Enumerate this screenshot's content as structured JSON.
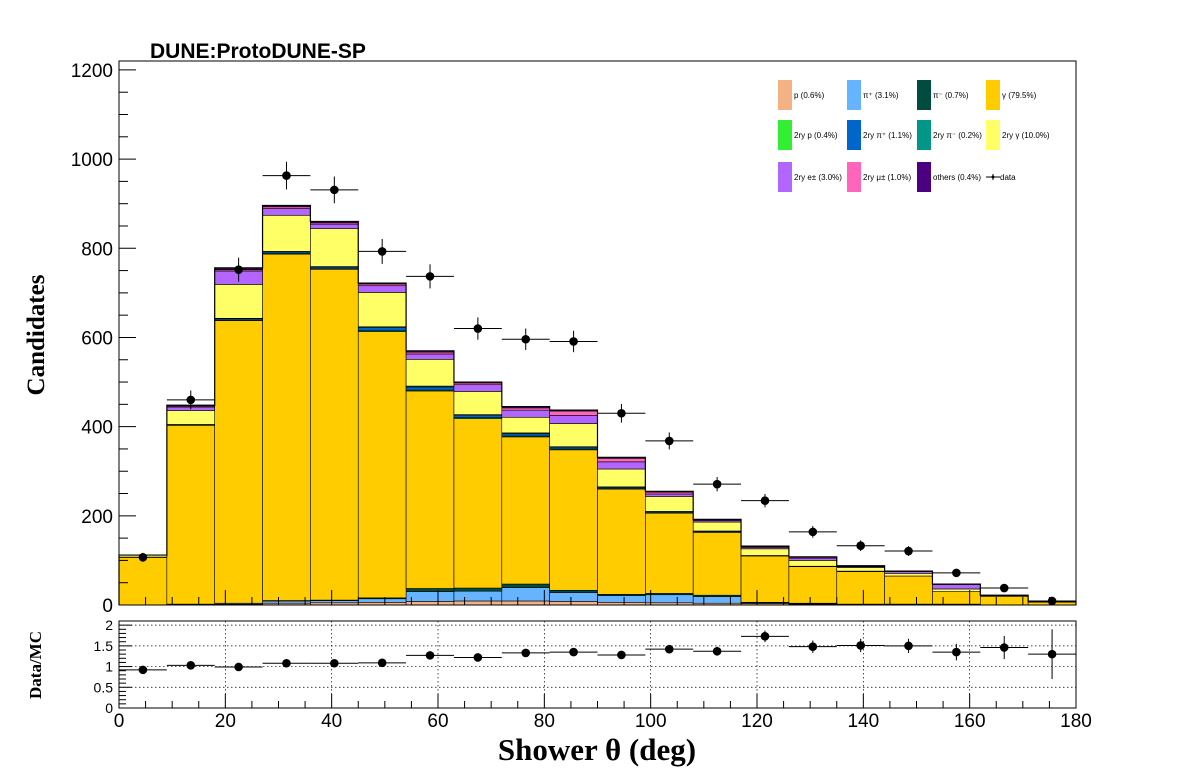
{
  "chart_data": [
    {
      "type": "bar",
      "title": "DUNE:ProtoDUNE-SP",
      "xlabel": "",
      "ylabel": "Candidates",
      "xlim": [
        0,
        180
      ],
      "ylim": [
        0,
        1220
      ],
      "y_ticks": [
        "0",
        "200",
        "400",
        "600",
        "800",
        "1000",
        "1200"
      ],
      "bin_edges": [
        0,
        9,
        18,
        27,
        36,
        45,
        54,
        63,
        72,
        81,
        90,
        99,
        108,
        117,
        126,
        135,
        144,
        153,
        162,
        171,
        180
      ],
      "series": [
        {
          "name": "p (0.6%)",
          "color": "#f4b183",
          "values": [
            0,
            1,
            2,
            4,
            5,
            6,
            8,
            9,
            9,
            8,
            6,
            5,
            4,
            3,
            2,
            1,
            1,
            1,
            0,
            0
          ]
        },
        {
          "name": "π⁺ (3.1%)",
          "color": "#66b3ff",
          "values": [
            0,
            1,
            2,
            5,
            5,
            8,
            22,
            22,
            30,
            20,
            15,
            18,
            15,
            2,
            1,
            1,
            1,
            1,
            0,
            0
          ]
        },
        {
          "name": "π⁻ (0.7%)",
          "color": "#004d40",
          "values": [
            0,
            0,
            0,
            1,
            1,
            2,
            7,
            7,
            8,
            5,
            3,
            3,
            3,
            1,
            1,
            0,
            0,
            0,
            0,
            0
          ]
        },
        {
          "name": "γ (79.5%)",
          "color": "#ffcc00",
          "values": [
            107,
            401,
            634,
            777,
            742,
            597,
            443,
            380,
            330,
            315,
            236,
            180,
            141,
            104,
            82,
            73,
            63,
            28,
            19,
            7
          ]
        },
        {
          "name": "2ry p (0.4%)",
          "color": "#33ee33",
          "values": [
            0,
            0,
            1,
            1,
            1,
            2,
            2,
            2,
            2,
            2,
            1,
            1,
            1,
            0,
            0,
            0,
            0,
            0,
            0,
            0
          ]
        },
        {
          "name": "2ry π⁺ (1.1%)",
          "color": "#0066cc",
          "values": [
            0,
            2,
            3,
            4,
            4,
            7,
            7,
            6,
            5,
            4,
            3,
            3,
            2,
            1,
            1,
            1,
            0,
            0,
            0,
            0
          ]
        },
        {
          "name": "2ry π⁻ (0.2%)",
          "color": "#009688",
          "values": [
            0,
            0,
            1,
            1,
            1,
            2,
            2,
            1,
            2,
            1,
            1,
            0,
            0,
            0,
            0,
            0,
            0,
            0,
            0,
            0
          ]
        },
        {
          "name": "2ry γ (10.0%)",
          "color": "#ffff66",
          "values": [
            5,
            31,
            76,
            81,
            85,
            77,
            60,
            52,
            35,
            52,
            40,
            33,
            20,
            15,
            13,
            8,
            6,
            6,
            2,
            0
          ]
        },
        {
          "name": "2ry e± (3.0%)",
          "color": "#b266ff",
          "values": [
            0,
            8,
            30,
            15,
            10,
            15,
            12,
            15,
            16,
            18,
            16,
            6,
            3,
            3,
            5,
            2,
            4,
            10,
            1,
            0
          ]
        },
        {
          "name": "2ry μ± (1.0%)",
          "color": "#ff66bb",
          "values": [
            0,
            2,
            3,
            4,
            3,
            4,
            4,
            4,
            5,
            10,
            8,
            4,
            2,
            2,
            2,
            1,
            1,
            1,
            0,
            0
          ]
        },
        {
          "name": "others (0.4%)",
          "color": "#4b0082",
          "values": [
            0,
            2,
            4,
            3,
            3,
            2,
            3,
            2,
            3,
            2,
            2,
            2,
            1,
            1,
            1,
            1,
            0,
            0,
            0,
            0
          ]
        },
        {
          "name": "data",
          "color": "#000000",
          "x": [
            4.5,
            13.5,
            22.5,
            31.5,
            40.5,
            49.5,
            58.5,
            67.5,
            76.5,
            85.5,
            94.5,
            103.5,
            112.5,
            121.5,
            130.5,
            139.5,
            148.5,
            157.5,
            166.5,
            175.5
          ],
          "values": [
            107,
            460,
            752,
            963,
            931,
            793,
            737,
            620,
            596,
            591,
            430,
            368,
            271,
            234,
            164,
            133,
            121,
            72,
            38,
            9
          ]
        }
      ],
      "data_errors": [
        10,
        21,
        27,
        31,
        30,
        28,
        27,
        25,
        24,
        24,
        21,
        19,
        16,
        15,
        13,
        12,
        11,
        8,
        6,
        3
      ],
      "legend_placement": "top-right"
    },
    {
      "type": "scatter",
      "xlabel": "Shower  θ (deg)",
      "ylabel": "Data/MC",
      "xlim": [
        0,
        180
      ],
      "ylim": [
        0,
        2.1
      ],
      "x_ticks": [
        "0",
        "20",
        "40",
        "60",
        "80",
        "100",
        "120",
        "140",
        "160",
        "180"
      ],
      "y_ticks": [
        "0",
        "0.5",
        "1",
        "1.5",
        "2"
      ],
      "grid": true,
      "x": [
        4.5,
        13.5,
        22.5,
        31.5,
        40.5,
        49.5,
        58.5,
        67.5,
        76.5,
        85.5,
        94.5,
        103.5,
        112.5,
        121.5,
        130.5,
        139.5,
        148.5,
        157.5,
        166.5,
        175.5
      ],
      "values": [
        0.92,
        1.03,
        0.99,
        1.08,
        1.08,
        1.09,
        1.27,
        1.22,
        1.33,
        1.35,
        1.28,
        1.42,
        1.37,
        1.73,
        1.48,
        1.51,
        1.5,
        1.35,
        1.46,
        1.3
      ],
      "errors": [
        0.06,
        0.06,
        0.05,
        0.05,
        0.05,
        0.06,
        0.06,
        0.07,
        0.07,
        0.08,
        0.08,
        0.1,
        0.11,
        0.14,
        0.15,
        0.16,
        0.17,
        0.2,
        0.28,
        0.6
      ]
    }
  ]
}
